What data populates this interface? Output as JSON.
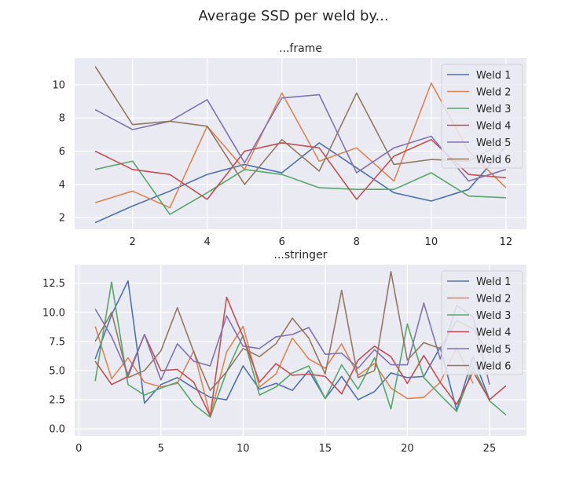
{
  "figure": {
    "title": "Average SSD per weld by..."
  },
  "chart_data": [
    {
      "type": "line",
      "title": "...frame",
      "xlabel": "",
      "ylabel": "",
      "xlim": [
        0.45,
        12.55
      ],
      "ylim": [
        1.3,
        11.6
      ],
      "x_ticks": [
        2,
        4,
        6,
        8,
        10,
        12
      ],
      "y_ticks": [
        2,
        4,
        6,
        8,
        10
      ],
      "grid": true,
      "legend_position": "upper right",
      "x": [
        1,
        2,
        3,
        4,
        5,
        6,
        7,
        8,
        9,
        10,
        11,
        12
      ],
      "series": [
        {
          "name": "Weld 1",
          "color": "#4c72b0",
          "values": [
            1.7,
            2.7,
            3.6,
            4.6,
            5.2,
            4.7,
            6.5,
            5.0,
            3.5,
            3.0,
            3.7,
            6.3
          ]
        },
        {
          "name": "Weld 2",
          "color": "#dd8452",
          "values": [
            2.9,
            3.6,
            2.6,
            7.5,
            4.9,
            9.5,
            5.4,
            6.2,
            4.2,
            10.1,
            6.0,
            3.8
          ]
        },
        {
          "name": "Weld 3",
          "color": "#55a868",
          "values": [
            4.9,
            5.4,
            2.2,
            3.5,
            4.9,
            4.6,
            3.8,
            3.7,
            3.7,
            4.7,
            3.3,
            3.2
          ]
        },
        {
          "name": "Weld 4",
          "color": "#c44e52",
          "values": [
            6.0,
            4.9,
            4.6,
            3.1,
            6.0,
            6.5,
            6.2,
            3.1,
            5.7,
            6.7,
            4.6,
            4.4
          ]
        },
        {
          "name": "Weld 5",
          "color": "#8172b3",
          "values": [
            8.5,
            7.3,
            7.8,
            9.1,
            5.3,
            9.2,
            9.4,
            4.7,
            6.2,
            6.9,
            4.2,
            4.9
          ]
        },
        {
          "name": "Weld 6",
          "color": "#937860",
          "values": [
            11.1,
            7.6,
            7.8,
            7.5,
            4.0,
            6.7,
            4.8,
            9.5,
            5.2,
            5.5,
            5.4,
            6.6
          ]
        }
      ]
    },
    {
      "type": "line",
      "title": "...stringer",
      "xlabel": "",
      "ylabel": "",
      "xlim": [
        -0.25,
        27.25
      ],
      "ylim": [
        -0.6,
        14.1
      ],
      "x_ticks": [
        0,
        5,
        10,
        15,
        20,
        25
      ],
      "y_ticks": [
        "0.0",
        "2.5",
        "5.0",
        "7.5",
        "10.0",
        "12.5"
      ],
      "grid": true,
      "legend_position": "upper right",
      "x": [
        1,
        2,
        3,
        4,
        5,
        6,
        7,
        8,
        9,
        10,
        11,
        12,
        13,
        14,
        15,
        16,
        17,
        18,
        19,
        20,
        21,
        22,
        23,
        24,
        25,
        26
      ],
      "series": [
        {
          "name": "Weld 1",
          "color": "#4c72b0",
          "values": [
            6.0,
            9.8,
            12.7,
            2.2,
            3.8,
            4.4,
            3.5,
            2.7,
            2.5,
            5.4,
            3.4,
            3.9,
            3.3,
            5.0,
            2.6,
            4.5,
            2.5,
            3.2,
            4.8,
            4.4,
            4.5,
            7.0,
            1.6,
            6.2,
            2.5,
            null
          ]
        },
        {
          "name": "Weld 2",
          "color": "#dd8452",
          "values": [
            8.8,
            4.3,
            6.1,
            4.0,
            3.6,
            3.9,
            6.7,
            1.1,
            6.6,
            8.8,
            3.6,
            4.7,
            7.8,
            6.0,
            5.2,
            7.3,
            4.6,
            5.6,
            3.5,
            2.6,
            2.7,
            4.0,
            7.0,
            3.9,
            null,
            null
          ]
        },
        {
          "name": "Weld 3",
          "color": "#55a868",
          "values": [
            4.1,
            12.6,
            3.8,
            2.9,
            3.5,
            4.0,
            2.1,
            1.0,
            4.9,
            8.0,
            2.9,
            3.6,
            4.8,
            5.4,
            2.6,
            5.5,
            3.4,
            6.1,
            1.7,
            9.0,
            4.4,
            2.9,
            1.5,
            5.3,
            2.4,
            1.2
          ]
        },
        {
          "name": "Weld 4",
          "color": "#c44e52",
          "values": [
            5.8,
            3.8,
            4.5,
            8.1,
            5.0,
            5.1,
            4.0,
            1.1,
            11.3,
            7.9,
            4.0,
            5.6,
            4.6,
            4.7,
            4.5,
            3.0,
            5.9,
            7.1,
            6.2,
            3.9,
            6.3,
            4.0,
            2.1,
            4.9,
            2.5,
            3.7
          ]
        },
        {
          "name": "Weld 5",
          "color": "#8172b3",
          "values": [
            10.3,
            7.9,
            4.7,
            8.1,
            4.2,
            7.3,
            5.8,
            5.4,
            9.7,
            7.1,
            6.9,
            7.9,
            8.1,
            8.7,
            6.4,
            6.5,
            5.2,
            6.8,
            5.5,
            5.5,
            10.8,
            6.0,
            10.6,
            9.6,
            3.8,
            null
          ]
        },
        {
          "name": "Weld 6",
          "color": "#937860",
          "values": [
            7.5,
            10.0,
            4.4,
            5.0,
            6.7,
            10.4,
            6.6,
            3.3,
            4.9,
            6.9,
            6.2,
            7.3,
            9.5,
            7.8,
            4.7,
            11.9,
            4.4,
            5.0,
            13.5,
            5.9,
            7.4,
            6.9,
            9.3,
            8.6,
            6.3,
            null
          ]
        }
      ]
    }
  ]
}
